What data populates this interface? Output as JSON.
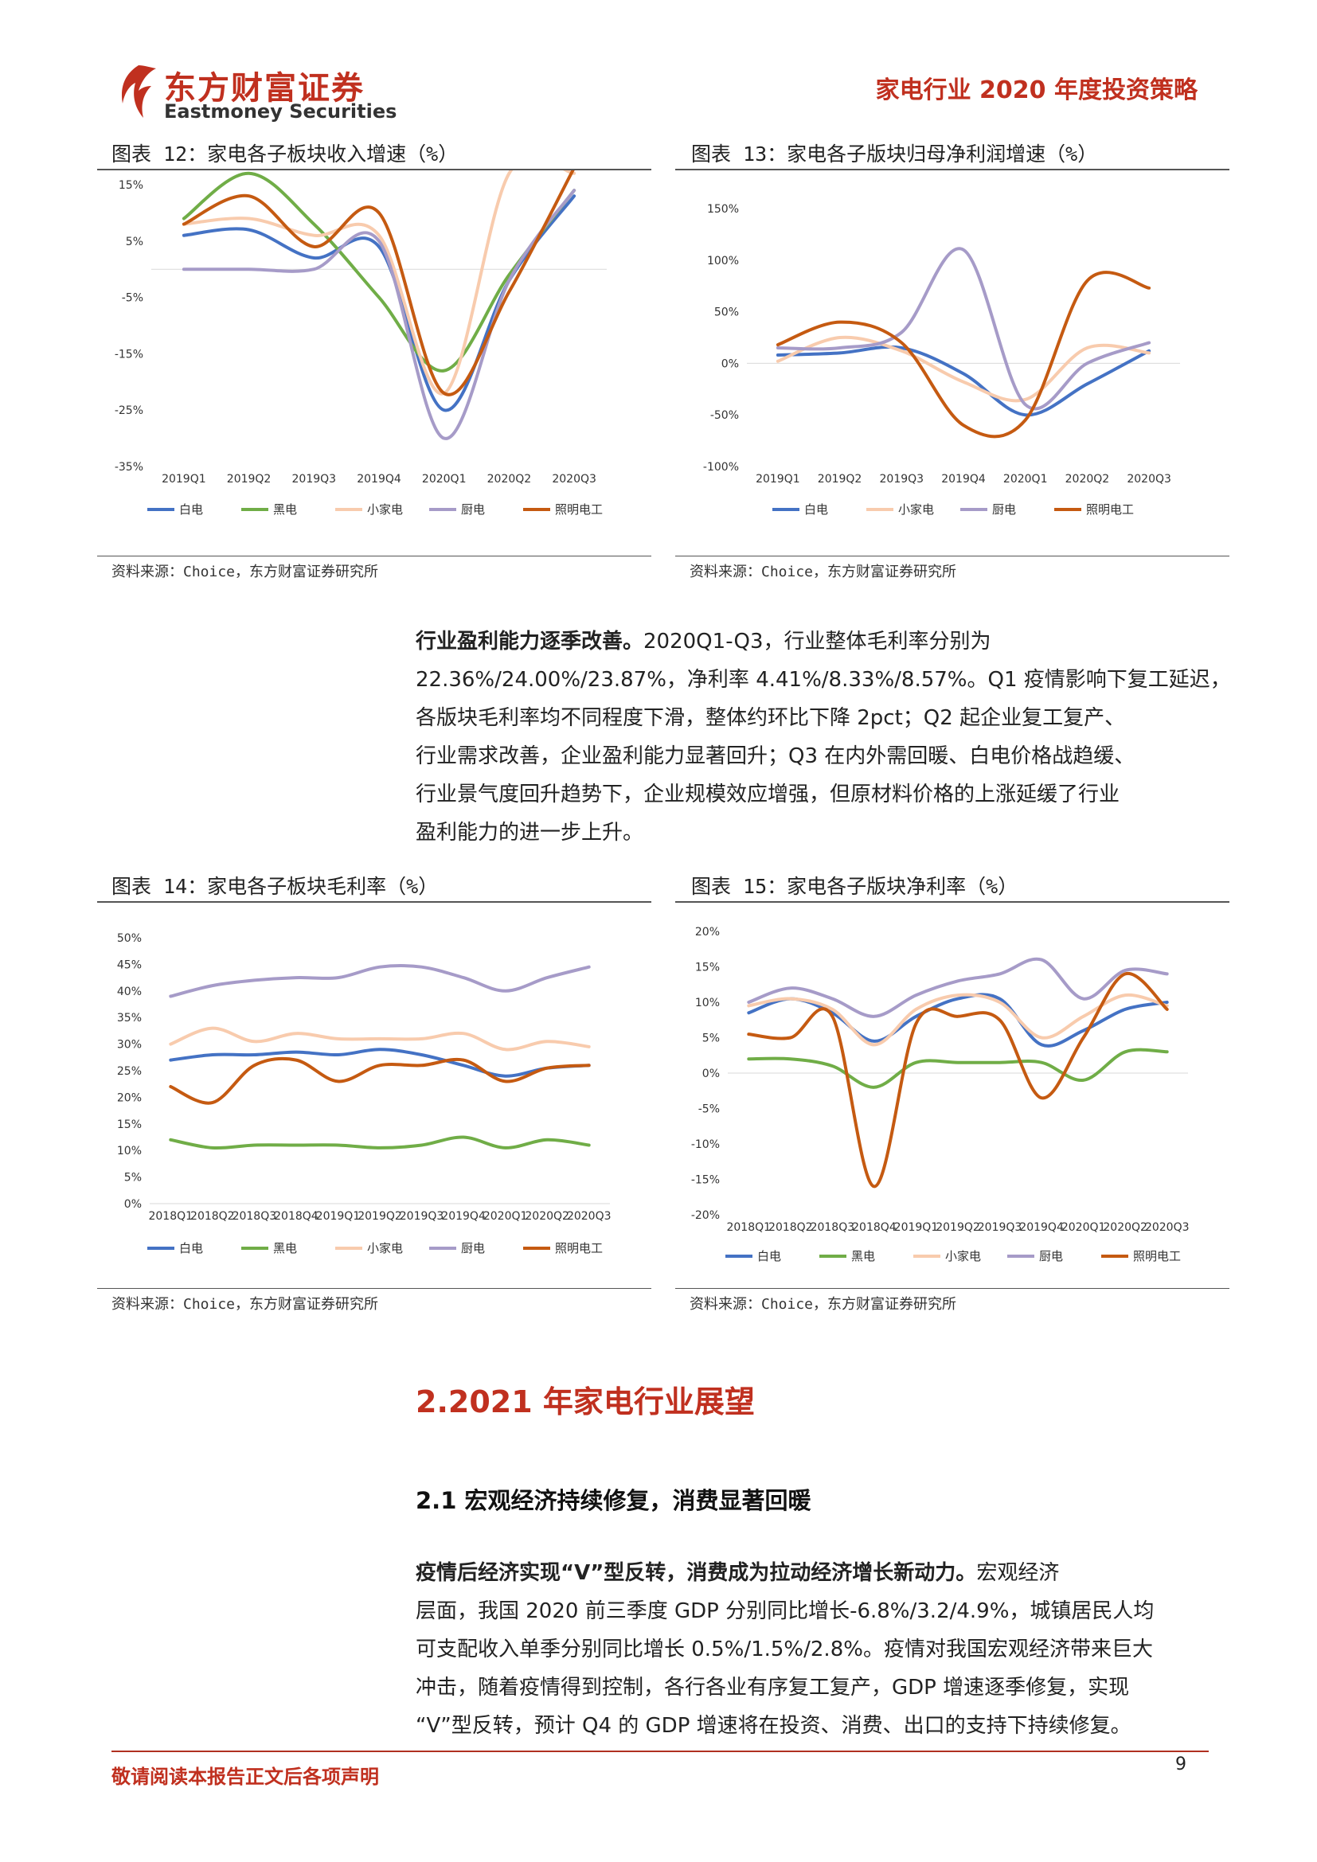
{
  "header": {
    "logo_cn": "东方财富证券",
    "logo_en": "Eastmoney Securities",
    "report_title": "家电行业 2020 年度投资策略",
    "brand_color": "#c0301f"
  },
  "figures": {
    "fig12": {
      "title": "图表 12：家电各子板块收入增速（%）",
      "source": "资料来源：Choice，东方财富证券研究所"
    },
    "fig13": {
      "title": "图表 13：家电各子版块归母净利润增速（%）",
      "source": "资料来源：Choice，东方财富证券研究所"
    },
    "fig14": {
      "title": "图表 14：家电各子板块毛利率（%）",
      "source": "资料来源：Choice，东方财富证券研究所"
    },
    "fig15": {
      "title": "图表 15：家电各子版块净利率（%）",
      "source": "资料来源：Choice，东方财富证券研究所"
    }
  },
  "paragraph1": {
    "bold": "行业盈利能力逐季改善。",
    "lines": [
      "2020Q1-Q3，行业整体毛利率分别为",
      "22.36%/24.00%/23.87%，净利率 4.41%/8.33%/8.57%。Q1 疫情影响下复工延迟，",
      "各版块毛利率均不同程度下滑，整体约环比下降 2pct；Q2 起企业复工复产、",
      "行业需求改善，企业盈利能力显著回升；Q3 在内外需回暖、白电价格战趋缓、",
      "行业景气度回升趋势下，企业规模效应增强，但原材料价格的上涨延缓了行业",
      "盈利能力的进一步上升。"
    ]
  },
  "section_heading": "2.2021 年家电行业展望",
  "sub_heading": "2.1 宏观经济持续修复，消费显著回暖",
  "paragraph2": {
    "bold": "疫情后经济实现“V”型反转，消费成为拉动经济增长新动力。",
    "lines": [
      "宏观经济",
      "层面，我国 2020 前三季度 GDP 分别同比增长-6.8%/3.2/4.9%，城镇居民人均",
      "可支配收入单季分别同比增长 0.5%/1.5%/2.8%。疫情对我国宏观经济带来巨大",
      "冲击，随着疫情得到控制，各行各业有序复工复产，GDP 增速逐季修复，实现",
      "“V”型反转，预计 Q4 的 GDP 增速将在投资、消费、出口的支持下持续修复。"
    ]
  },
  "footer": {
    "disclaimer": "敬请阅读本报告正文后各项声明",
    "page_number": "9"
  },
  "chart_data": [
    {
      "id": "fig12",
      "type": "line",
      "x": [
        "2019Q1",
        "2019Q2",
        "2019Q3",
        "2019Q4",
        "2020Q1",
        "2020Q2",
        "2020Q3"
      ],
      "ylim": [
        -35,
        15
      ],
      "yticks": [
        "15%",
        "5%",
        "-5%",
        "-15%",
        "-25%",
        "-35%"
      ],
      "yticks_values": [
        15,
        5,
        -5,
        -15,
        -25,
        -35
      ],
      "legend_position": "bottom",
      "series": [
        {
          "name": "白电",
          "color": "#4472c4",
          "values": [
            6,
            7,
            2,
            4,
            -25,
            -2,
            13
          ]
        },
        {
          "name": "黑电",
          "color": "#70ad47",
          "values": [
            9,
            17,
            8,
            -5,
            -18,
            -1,
            14
          ]
        },
        {
          "name": "小家电",
          "color": "#f8cbad",
          "values": [
            8,
            9,
            6,
            6,
            -22,
            17,
            17
          ]
        },
        {
          "name": "厨电",
          "color": "#a69bc8",
          "values": [
            0,
            0,
            0,
            5,
            -30,
            -2,
            14
          ]
        },
        {
          "name": "照明电工",
          "color": "#c55a11",
          "values": [
            8,
            13,
            4,
            10,
            -22,
            -4,
            18
          ]
        }
      ]
    },
    {
      "id": "fig13",
      "type": "line",
      "x": [
        "2019Q1",
        "2019Q2",
        "2019Q3",
        "2019Q4",
        "2020Q1",
        "2020Q2",
        "2020Q3"
      ],
      "ylim": [
        -100,
        150
      ],
      "yticks": [
        "150%",
        "100%",
        "50%",
        "0%",
        "-50%",
        "-100%"
      ],
      "yticks_values": [
        150,
        100,
        50,
        0,
        -50,
        -100
      ],
      "legend_position": "bottom",
      "series": [
        {
          "name": "白电",
          "color": "#4472c4",
          "values": [
            8,
            10,
            15,
            -10,
            -50,
            -20,
            12
          ]
        },
        {
          "name": "小家电",
          "color": "#f8cbad",
          "values": [
            2,
            25,
            12,
            -18,
            -35,
            15,
            10
          ]
        },
        {
          "name": "厨电",
          "color": "#a69bc8",
          "values": [
            15,
            15,
            30,
            110,
            -40,
            0,
            20
          ]
        },
        {
          "name": "照明电工",
          "color": "#c55a11",
          "values": [
            18,
            40,
            20,
            -60,
            -55,
            80,
            73
          ]
        }
      ]
    },
    {
      "id": "fig14",
      "type": "line",
      "x": [
        "2018Q1",
        "2018Q2",
        "2018Q3",
        "2018Q4",
        "2019Q1",
        "2019Q2",
        "2019Q3",
        "2019Q4",
        "2020Q1",
        "2020Q2",
        "2020Q3"
      ],
      "ylim": [
        0,
        50
      ],
      "yticks": [
        "50%",
        "45%",
        "40%",
        "35%",
        "30%",
        "25%",
        "20%",
        "15%",
        "10%",
        "5%",
        "0%"
      ],
      "yticks_values": [
        50,
        45,
        40,
        35,
        30,
        25,
        20,
        15,
        10,
        5,
        0
      ],
      "legend_position": "bottom",
      "series": [
        {
          "name": "白电",
          "color": "#4472c4",
          "values": [
            27,
            28,
            28,
            28.5,
            28,
            29,
            28,
            26,
            24,
            25.5,
            26
          ]
        },
        {
          "name": "黑电",
          "color": "#70ad47",
          "values": [
            12,
            10.5,
            11,
            11,
            11,
            10.5,
            11,
            12.5,
            10.5,
            12,
            11
          ]
        },
        {
          "name": "小家电",
          "color": "#f8cbad",
          "values": [
            30,
            33,
            30.5,
            32,
            31,
            31,
            31,
            32,
            29,
            30.5,
            29.5
          ]
        },
        {
          "name": "厨电",
          "color": "#a69bc8",
          "values": [
            39,
            41,
            42,
            42.5,
            42.5,
            44.5,
            44.5,
            42.5,
            40,
            42.5,
            44.5
          ]
        },
        {
          "name": "照明电工",
          "color": "#c55a11",
          "values": [
            22,
            19,
            26,
            27,
            23,
            26,
            26,
            27,
            23,
            25.5,
            26
          ]
        }
      ]
    },
    {
      "id": "fig15",
      "type": "line",
      "x": [
        "2018Q1",
        "2018Q2",
        "2018Q3",
        "2018Q4",
        "2019Q1",
        "2019Q2",
        "2019Q3",
        "2019Q4",
        "2020Q1",
        "2020Q2",
        "2020Q3"
      ],
      "ylim": [
        -20,
        20
      ],
      "yticks": [
        "20%",
        "15%",
        "10%",
        "5%",
        "0%",
        "-5%",
        "-10%",
        "-15%",
        "-20%"
      ],
      "yticks_values": [
        20,
        15,
        10,
        5,
        0,
        -5,
        -10,
        -15,
        -20
      ],
      "legend_position": "bottom",
      "series": [
        {
          "name": "白电",
          "color": "#4472c4",
          "values": [
            8.5,
            10.5,
            8.5,
            4.5,
            8,
            10.5,
            10.5,
            4,
            6,
            9,
            10
          ]
        },
        {
          "name": "黑电",
          "color": "#70ad47",
          "values": [
            2,
            2,
            1,
            -2,
            1.5,
            1.5,
            1.5,
            1.5,
            -1,
            3,
            3
          ]
        },
        {
          "name": "小家电",
          "color": "#f8cbad",
          "values": [
            9.5,
            10.5,
            9,
            4,
            9,
            11,
            10,
            5,
            8,
            11,
            9.5
          ]
        },
        {
          "name": "厨电",
          "color": "#a69bc8",
          "values": [
            10,
            12,
            10.5,
            8,
            11,
            13,
            14,
            16,
            10.5,
            14.5,
            14
          ]
        },
        {
          "name": "照明电工",
          "color": "#c55a11",
          "values": [
            5.5,
            5,
            8,
            -16,
            7,
            8,
            7.5,
            -3.5,
            5,
            14,
            9
          ]
        }
      ]
    }
  ]
}
